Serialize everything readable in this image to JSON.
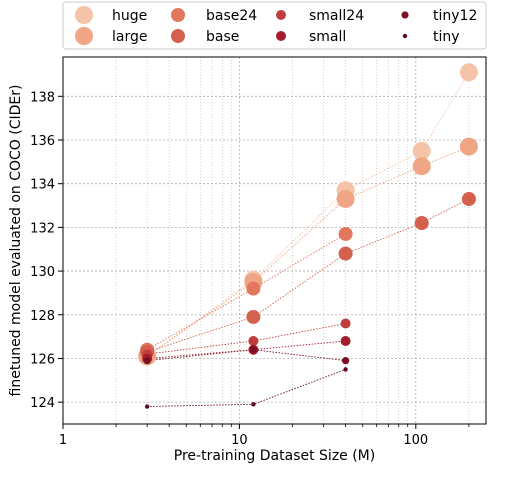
{
  "chart_data": {
    "type": "scatter",
    "xlabel": "Pre-training Dataset Size (M)",
    "ylabel": "finetuned model evaluated on COCO (CIDEr)",
    "xscale": "log",
    "xlim": [
      1,
      250
    ],
    "ylim": [
      123,
      139.8
    ],
    "grid": true,
    "legend_position": "top",
    "x_ticks": [
      {
        "value": 1,
        "label": "1"
      },
      {
        "value": 10,
        "label": "10"
      },
      {
        "value": 100,
        "label": "100"
      }
    ],
    "y_ticks": [
      {
        "value": 124,
        "label": "124"
      },
      {
        "value": 126,
        "label": "126"
      },
      {
        "value": 128,
        "label": "128"
      },
      {
        "value": 130,
        "label": "130"
      },
      {
        "value": 132,
        "label": "132"
      },
      {
        "value": 134,
        "label": "134"
      },
      {
        "value": 136,
        "label": "136"
      },
      {
        "value": 138,
        "label": "138"
      }
    ],
    "series": [
      {
        "name": "huge",
        "color": "#f4c3a8",
        "marker_size": "xl",
        "x": [
          3,
          12,
          40,
          108,
          200
        ],
        "y": [
          126.1,
          129.6,
          133.7,
          135.5,
          139.1
        ]
      },
      {
        "name": "large",
        "color": "#f0a585",
        "marker_size": "xl",
        "x": [
          3,
          12,
          40,
          108,
          200
        ],
        "y": [
          126.1,
          129.5,
          133.3,
          134.8,
          135.7
        ]
      },
      {
        "name": "base24",
        "color": "#e2775e",
        "marker_size": "l",
        "x": [
          3,
          12,
          40
        ],
        "y": [
          126.4,
          129.2,
          131.7
        ]
      },
      {
        "name": "base",
        "color": "#d5604e",
        "marker_size": "l",
        "x": [
          3,
          12,
          40,
          108,
          200
        ],
        "y": [
          126.3,
          127.9,
          130.8,
          132.2,
          133.3
        ]
      },
      {
        "name": "small24",
        "color": "#c03f3e",
        "marker_size": "m",
        "x": [
          3,
          12,
          40
        ],
        "y": [
          126.2,
          126.8,
          127.6
        ]
      },
      {
        "name": "small",
        "color": "#a51d2c",
        "marker_size": "m",
        "x": [
          3,
          12,
          40
        ],
        "y": [
          126.0,
          126.4,
          126.8
        ]
      },
      {
        "name": "tiny12",
        "color": "#7d0f22",
        "marker_size": "s",
        "x": [
          3,
          12,
          40
        ],
        "y": [
          125.9,
          126.4,
          125.9
        ]
      },
      {
        "name": "tiny",
        "color": "#5e0a1c",
        "marker_size": "xs",
        "x": [
          3,
          12,
          40
        ],
        "y": [
          123.8,
          123.9,
          125.5
        ]
      }
    ]
  }
}
